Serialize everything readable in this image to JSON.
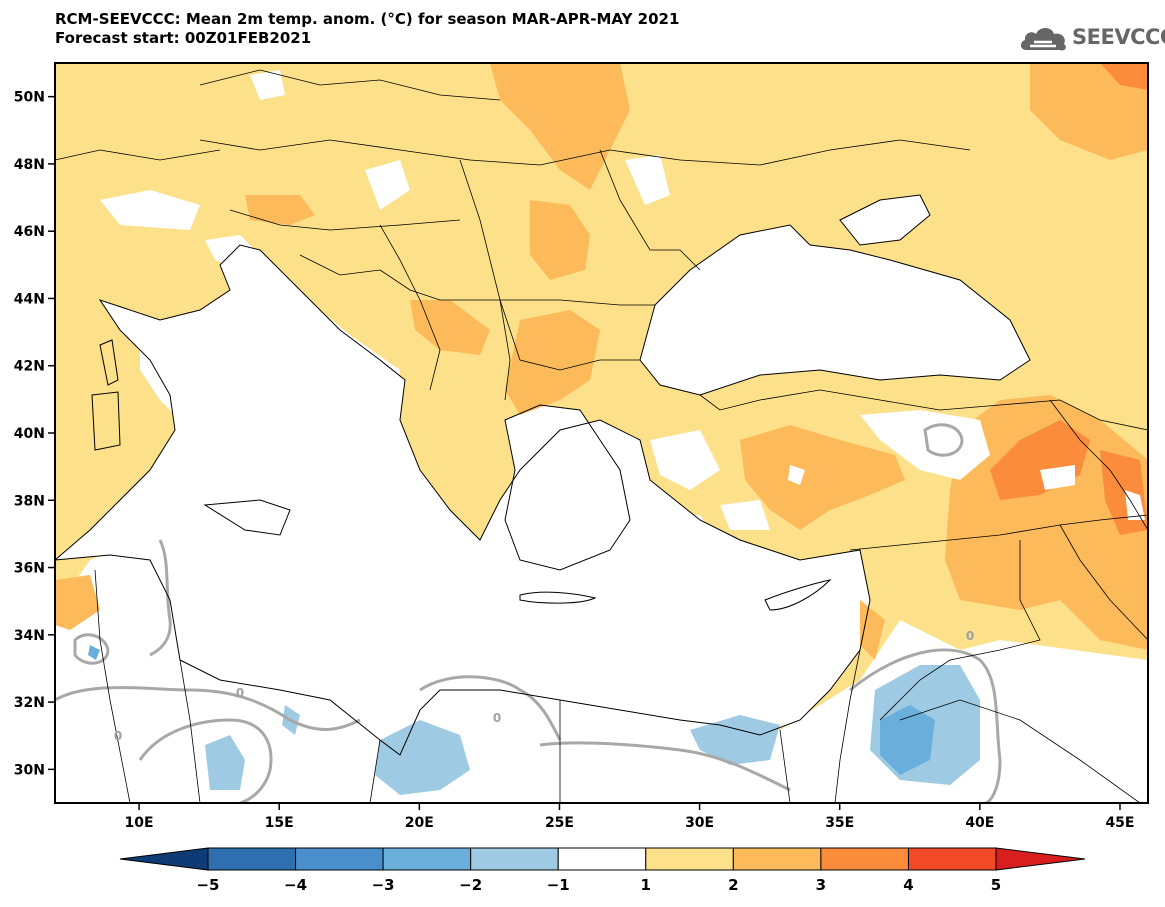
{
  "header": {
    "title_line1": "RCM-SEEVCCC: Mean 2m temp. anom. (°C) for season MAR-APR-MAY 2021",
    "title_line2": "Forecast start: 00Z01FEB2021"
  },
  "logo": {
    "text": "SEEVCCC",
    "icon": "cloud-logo-icon"
  },
  "map": {
    "lon_range": [
      7,
      46
    ],
    "lat_range": [
      29,
      51
    ],
    "x_ticks": [
      "10E",
      "15E",
      "20E",
      "25E",
      "30E",
      "35E",
      "40E",
      "45E"
    ],
    "x_tick_values": [
      10,
      15,
      20,
      25,
      30,
      35,
      40,
      45
    ],
    "y_ticks": [
      "30N",
      "32N",
      "34N",
      "36N",
      "38N",
      "40N",
      "42N",
      "44N",
      "46N",
      "48N",
      "50N"
    ],
    "y_tick_values": [
      30,
      32,
      34,
      36,
      38,
      40,
      42,
      44,
      46,
      48,
      50
    ],
    "contour_labels": [
      "0",
      "0",
      "0",
      "0"
    ]
  },
  "colorbar": {
    "labels": [
      "−5",
      "−4",
      "−3",
      "−2",
      "−1",
      "1",
      "2",
      "3",
      "4",
      "5"
    ],
    "colors": [
      "#1c4f8f",
      "#2f6fb0",
      "#4a8fcc",
      "#6aaedc",
      "#9ecae3",
      "#ffffff",
      "#fde08a",
      "#fdba5a",
      "#fa8c3c",
      "#f24a28",
      "#d81e1e"
    ],
    "colors_note_under": "#0e3a75"
  }
}
